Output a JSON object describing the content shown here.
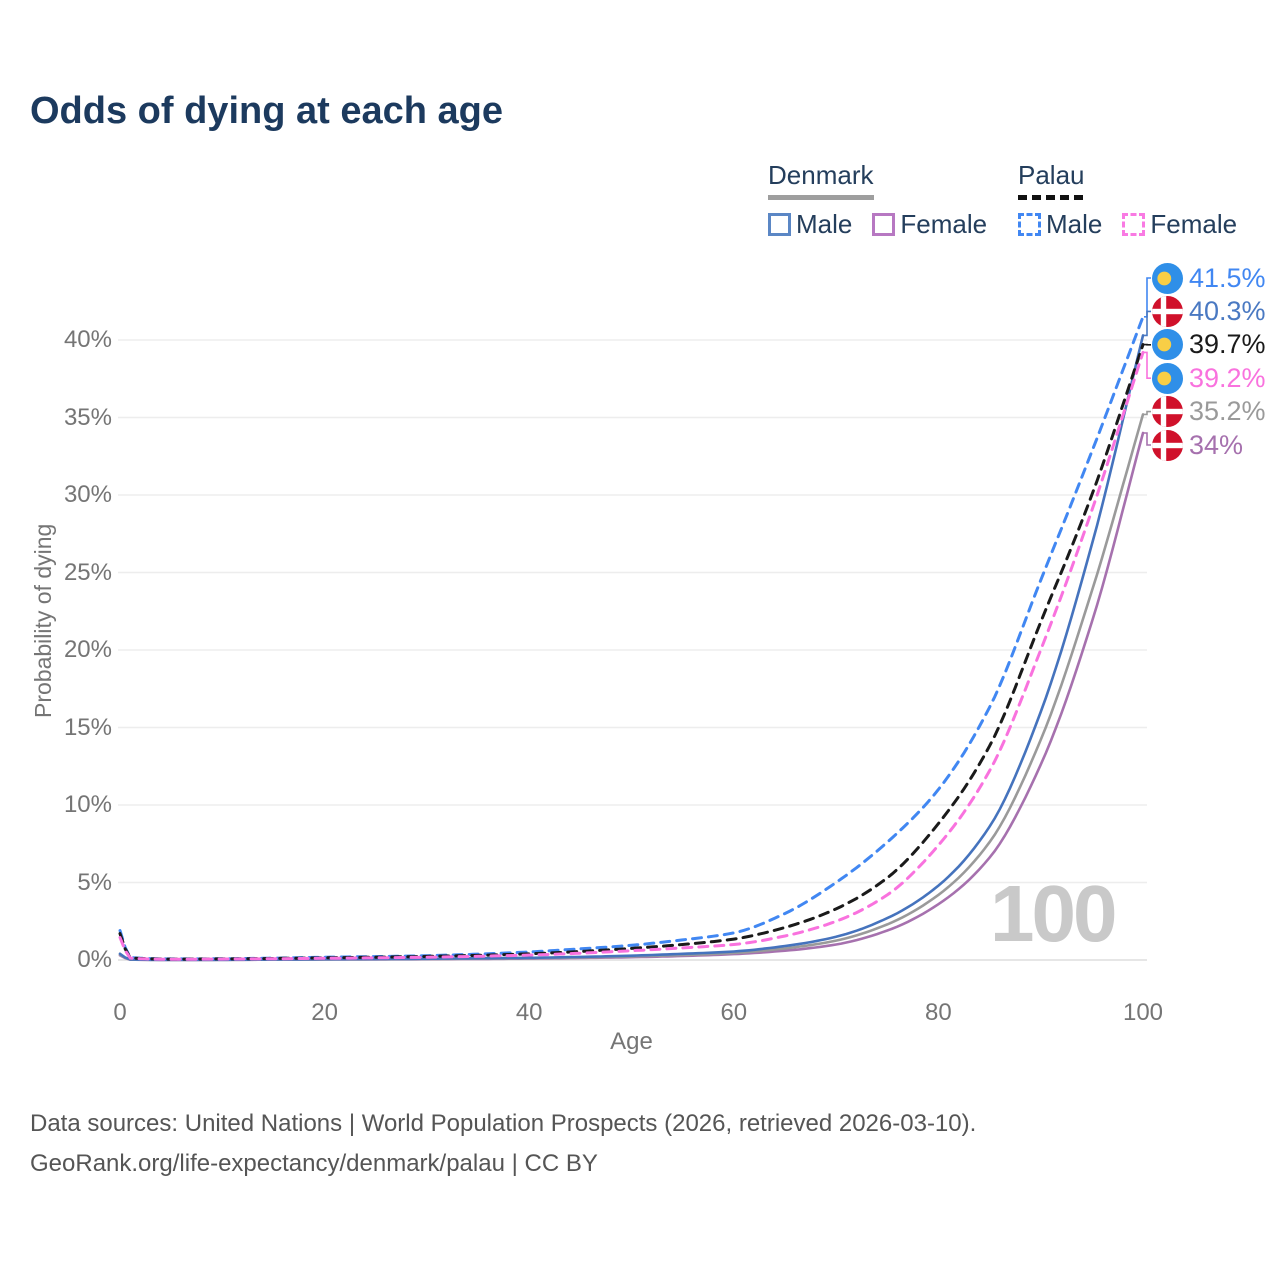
{
  "title": "Odds of dying at each age",
  "legend": {
    "groups": [
      {
        "name": "Denmark",
        "line_style": "solid",
        "underline_color": "#9e9e9e",
        "items": [
          {
            "label": "Male",
            "swatch_color": "#5b87c5"
          },
          {
            "label": "Female",
            "swatch_color": "#b778c2"
          }
        ]
      },
      {
        "name": "Palau",
        "line_style": "dashed",
        "underline_color": "#111111",
        "items": [
          {
            "label": "Male",
            "swatch_color": "#4187f2"
          },
          {
            "label": "Female",
            "swatch_color": "#f97ae3"
          }
        ]
      }
    ]
  },
  "watermark": "100",
  "footer": {
    "line1": "Data sources: United Nations | World Population Prospects (2026, retrieved 2026-03-10).",
    "line2": "GeoRank.org/life-expectancy/denmark/palau | CC BY"
  },
  "chart_data": {
    "type": "line",
    "title": "Odds of dying at each age",
    "xlabel": "Age",
    "ylabel": "Probability of dying",
    "unit": "percent",
    "xlim": [
      0,
      100
    ],
    "ylim": [
      0,
      43
    ],
    "x_ticks": [
      "0",
      "20",
      "40",
      "60",
      "80",
      "100"
    ],
    "y_ticks": [
      "0%",
      "5%",
      "10%",
      "15%",
      "20%",
      "25%",
      "30%",
      "35%",
      "40%"
    ],
    "grid": "horizontal",
    "legend_position": "top-right",
    "x": [
      0,
      1,
      5,
      10,
      15,
      20,
      25,
      30,
      35,
      40,
      45,
      50,
      55,
      60,
      65,
      70,
      75,
      80,
      85,
      90,
      95,
      100
    ],
    "series": [
      {
        "id": "palau_male",
        "country": "Palau",
        "sex": "Male",
        "style": "dashed",
        "color": "#4187f2",
        "label_color": "#4187f2",
        "end_label": "41.5%",
        "end_value": 41.5,
        "flag": "palau",
        "values": [
          1.9,
          0.16,
          0.07,
          0.08,
          0.12,
          0.18,
          0.22,
          0.28,
          0.38,
          0.52,
          0.72,
          0.95,
          1.3,
          1.75,
          3.0,
          5.0,
          7.6,
          11.0,
          16.3,
          24.5,
          32.8,
          41.5
        ]
      },
      {
        "id": "denmark_male",
        "country": "Denmark",
        "sex": "Male",
        "style": "solid",
        "color": "#4573bd",
        "label_color": "#4a79c2",
        "end_label": "40.3%",
        "end_value": 40.3,
        "flag": "denmark",
        "values": [
          0.4,
          0.03,
          0.012,
          0.015,
          0.03,
          0.05,
          0.06,
          0.08,
          0.11,
          0.14,
          0.2,
          0.28,
          0.4,
          0.55,
          0.9,
          1.5,
          2.7,
          4.8,
          8.6,
          16.0,
          26.8,
          40.3
        ]
      },
      {
        "id": "palau_total",
        "country": "Palau",
        "sex": "Both",
        "style": "dashed",
        "color": "#1a1a1a",
        "label_color": "#1a1a1a",
        "end_label": "39.7%",
        "end_value": 39.7,
        "flag": "palau",
        "values": [
          1.7,
          0.14,
          0.06,
          0.07,
          0.1,
          0.14,
          0.18,
          0.23,
          0.3,
          0.4,
          0.55,
          0.75,
          1.0,
          1.35,
          2.1,
          3.3,
          5.3,
          8.8,
          13.8,
          21.8,
          30.0,
          39.7
        ]
      },
      {
        "id": "palau_female",
        "country": "Palau",
        "sex": "Female",
        "style": "dashed",
        "color": "#f972de",
        "label_color": "#f972de",
        "end_label": "39.2%",
        "end_value": 39.2,
        "flag": "palau",
        "values": [
          1.45,
          0.12,
          0.05,
          0.06,
          0.08,
          0.11,
          0.14,
          0.18,
          0.24,
          0.32,
          0.44,
          0.6,
          0.78,
          1.0,
          1.55,
          2.5,
          4.2,
          7.4,
          12.2,
          20.0,
          29.0,
          39.2
        ]
      },
      {
        "id": "denmark_total",
        "country": "Denmark",
        "sex": "Both",
        "style": "solid",
        "color": "#9a9a9a",
        "label_color": "#9a9a9a",
        "end_label": "35.2%",
        "end_value": 35.2,
        "flag": "denmark",
        "values": [
          0.35,
          0.025,
          0.01,
          0.012,
          0.025,
          0.04,
          0.05,
          0.065,
          0.09,
          0.12,
          0.16,
          0.23,
          0.32,
          0.45,
          0.75,
          1.25,
          2.3,
          4.2,
          7.6,
          14.2,
          23.8,
          35.2
        ]
      },
      {
        "id": "denmark_female",
        "country": "Denmark",
        "sex": "Female",
        "style": "solid",
        "color": "#a671ae",
        "label_color": "#a671ae",
        "end_label": "34%",
        "end_value": 34.0,
        "flag": "denmark",
        "values": [
          0.3,
          0.02,
          0.009,
          0.01,
          0.02,
          0.03,
          0.04,
          0.05,
          0.07,
          0.09,
          0.13,
          0.18,
          0.26,
          0.38,
          0.6,
          1.0,
          1.9,
          3.6,
          6.6,
          12.6,
          21.8,
          34.0
        ]
      }
    ]
  }
}
